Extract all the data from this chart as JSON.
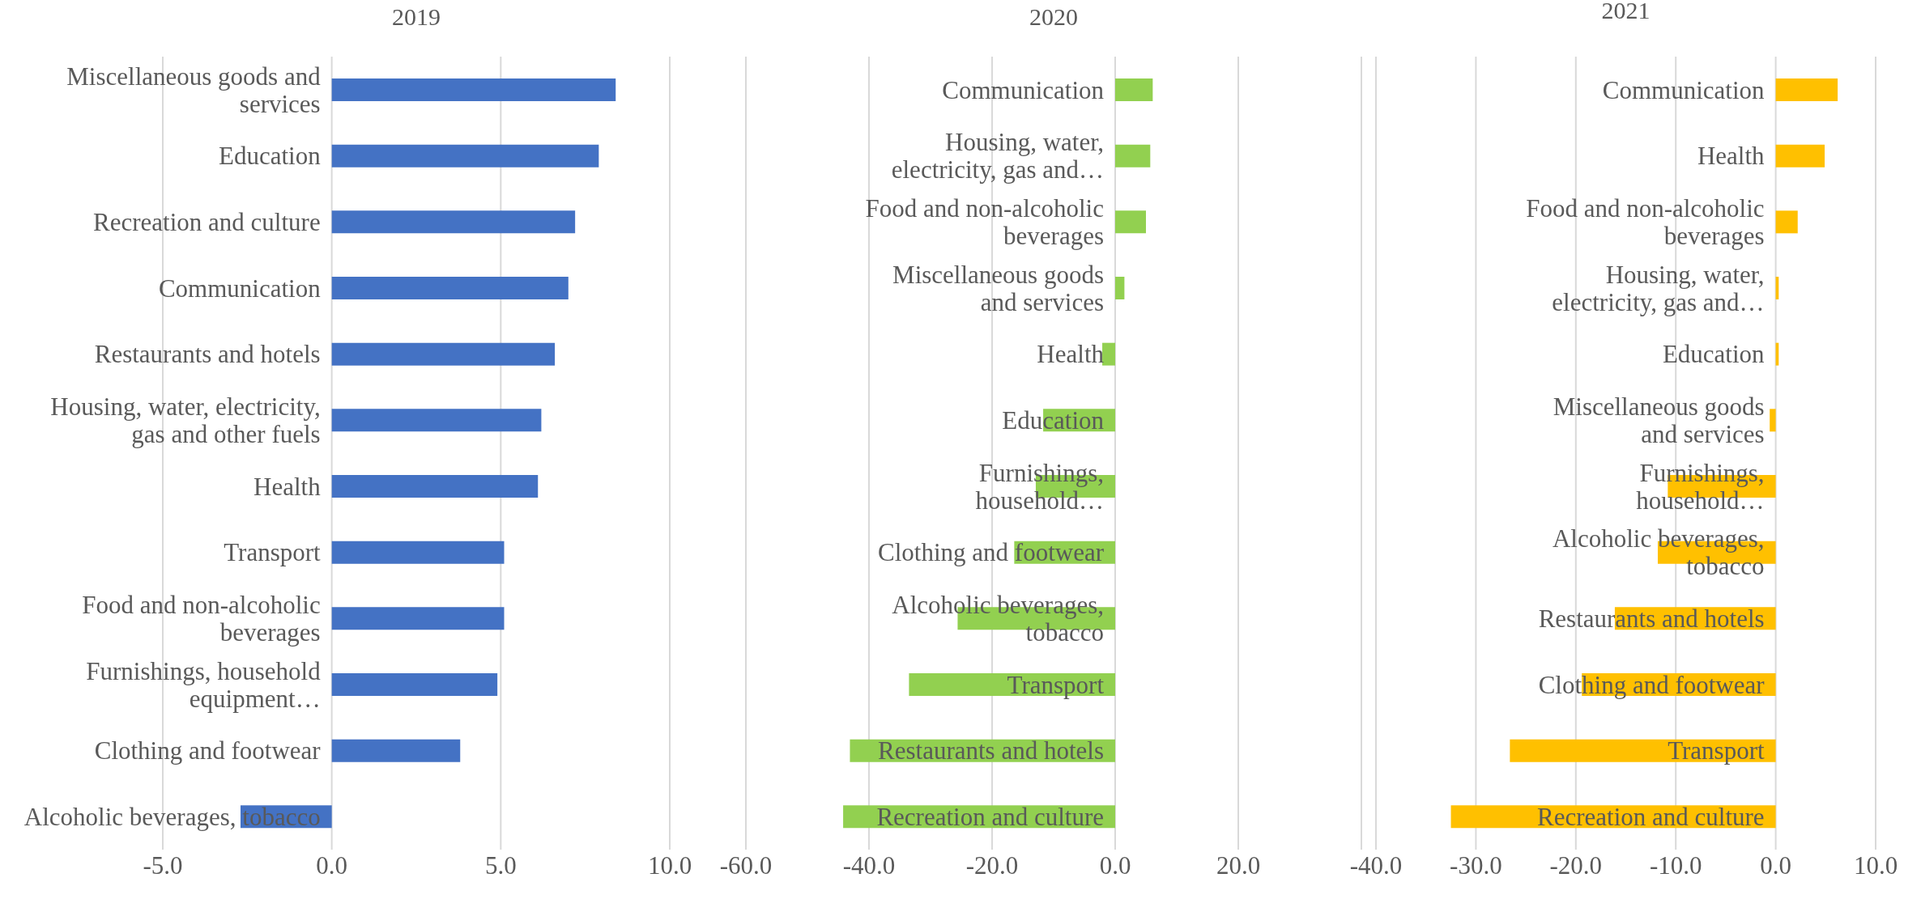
{
  "chart_data": [
    {
      "type": "bar",
      "orientation": "horizontal",
      "title": "2019",
      "categories": [
        "Miscellaneous goods and services",
        "Education",
        "Recreation and culture",
        "Communication",
        "Restaurants and hotels",
        "Housing, water, electricity, gas and other fuels",
        "Health",
        "Transport",
        "Food and non-alcoholic beverages",
        "Furnishings, household equipment…",
        "Clothing and footwear",
        "Alcoholic beverages, tobacco"
      ],
      "values": [
        8.4,
        7.9,
        7.2,
        7.0,
        6.6,
        6.2,
        6.1,
        5.1,
        5.1,
        4.9,
        3.8,
        -2.7
      ],
      "color": "#4472c4",
      "xlim": [
        -5,
        10
      ],
      "xticks": [
        {
          "value": -5,
          "label": "-5.0"
        },
        {
          "value": 0,
          "label": "0.0"
        },
        {
          "value": 5,
          "label": "5.0"
        },
        {
          "value": 10,
          "label": "10.0"
        }
      ],
      "grid": "x"
    },
    {
      "type": "bar",
      "orientation": "horizontal",
      "title": "2020",
      "categories": [
        "Communication",
        "Housing, water, electricity, gas and…",
        "Food and non-alcoholic beverages",
        "Miscellaneous goods and services",
        "Health",
        "Education",
        "Furnishings, household…",
        "Clothing and footwear",
        "Alcoholic beverages, tobacco",
        "Transport",
        "Restaurants and hotels",
        "Recreation and culture"
      ],
      "values": [
        6.1,
        5.7,
        5.0,
        1.5,
        -2.1,
        -11.7,
        -12.9,
        -16.4,
        -25.6,
        -33.5,
        -43.1,
        -44.2
      ],
      "color": "#92d050",
      "xlim": [
        -60,
        40
      ],
      "xticks": [
        {
          "value": -60,
          "label": "-60.0"
        },
        {
          "value": -40,
          "label": "-40.0"
        },
        {
          "value": -20,
          "label": "-20.0"
        },
        {
          "value": 0,
          "label": "0.0"
        },
        {
          "value": 20,
          "label": "20.0"
        },
        {
          "value": 40,
          "label": null
        }
      ],
      "grid": "x"
    },
    {
      "type": "bar",
      "orientation": "horizontal",
      "title": "2021",
      "categories": [
        "Communication",
        "Health",
        "Food and non-alcoholic beverages",
        "Housing, water, electricity, gas and…",
        "Education",
        "Miscellaneous goods and services",
        "Furnishings, household…",
        "Alcoholic beverages, tobacco",
        "Restaurants and hotels",
        "Clothing and footwear",
        "Transport",
        "Recreation and culture"
      ],
      "values": [
        6.2,
        4.9,
        2.2,
        0.3,
        0.3,
        -0.6,
        -10.8,
        -11.8,
        -16.1,
        -19.4,
        -26.6,
        -32.5
      ],
      "color": "#ffc000",
      "xlim": [
        -40,
        10
      ],
      "xticks": [
        {
          "value": -40,
          "label": "-40.0"
        },
        {
          "value": -30,
          "label": "-30.0"
        },
        {
          "value": -20,
          "label": "-20.0"
        },
        {
          "value": -10,
          "label": "-10.0"
        },
        {
          "value": 0,
          "label": "0.0"
        },
        {
          "value": 10,
          "label": "10.0"
        }
      ],
      "grid": "x"
    }
  ]
}
